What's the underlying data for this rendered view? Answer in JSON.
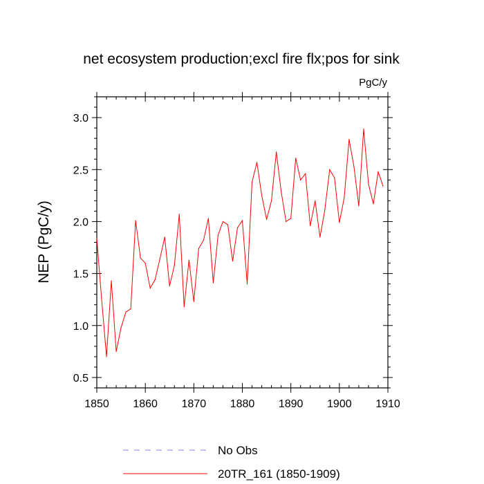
{
  "chart_data": {
    "type": "line",
    "title": "net ecosystem production;excl fire flx;pos for sink",
    "units_label": "PgC/y",
    "ylabel": "NEP  (PgC/y)",
    "xlabel": "",
    "xlim": [
      1850,
      1910
    ],
    "ylim": [
      0.4,
      3.2
    ],
    "xticks": [
      1850,
      1860,
      1870,
      1880,
      1890,
      1900,
      1910
    ],
    "xtick_labels": [
      "1850",
      "1860",
      "1870",
      "1880",
      "1890",
      "1900",
      "1910"
    ],
    "yticks": [
      0.5,
      1.0,
      1.5,
      2.0,
      2.5,
      3.0
    ],
    "ytick_labels": [
      "0.5",
      "1.0",
      "1.5",
      "2.0",
      "2.5",
      "3.0"
    ],
    "grid": false,
    "legend_position": "bottom",
    "legend": [
      {
        "label": "No Obs",
        "color": "#8080ff",
        "style": "dashed"
      },
      {
        "label": "20TR_161 (1850-1909)",
        "color": "#ff0000",
        "style": "solid"
      }
    ],
    "series": [
      {
        "name": "20TR_161 (1850-1909)",
        "color": "#ff0000",
        "x": [
          1850,
          1851,
          1852,
          1853,
          1854,
          1855,
          1856,
          1857,
          1858,
          1859,
          1860,
          1861,
          1862,
          1863,
          1864,
          1865,
          1866,
          1867,
          1868,
          1869,
          1870,
          1871,
          1872,
          1873,
          1874,
          1875,
          1876,
          1877,
          1878,
          1879,
          1880,
          1881,
          1882,
          1883,
          1884,
          1885,
          1886,
          1887,
          1888,
          1889,
          1890,
          1891,
          1892,
          1893,
          1894,
          1895,
          1896,
          1897,
          1898,
          1899,
          1900,
          1901,
          1902,
          1903,
          1904,
          1905,
          1906,
          1907,
          1908,
          1909
        ],
        "values": [
          1.84,
          1.25,
          0.7,
          1.43,
          0.75,
          0.98,
          1.13,
          1.16,
          2.01,
          1.65,
          1.6,
          1.36,
          1.44,
          1.64,
          1.85,
          1.38,
          1.58,
          2.07,
          1.18,
          1.63,
          1.23,
          1.74,
          1.82,
          2.03,
          1.41,
          1.87,
          2.0,
          1.97,
          1.62,
          1.94,
          2.01,
          1.4,
          2.38,
          2.57,
          2.25,
          2.02,
          2.2,
          2.67,
          2.29,
          2.0,
          2.03,
          2.61,
          2.4,
          2.46,
          1.96,
          2.2,
          1.85,
          2.11,
          2.5,
          2.42,
          1.99,
          2.23,
          2.79,
          2.53,
          2.15,
          2.89,
          2.36,
          2.17,
          2.48,
          2.34
        ]
      }
    ]
  }
}
